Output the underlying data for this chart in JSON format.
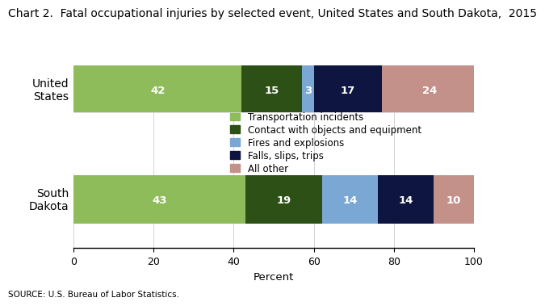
{
  "title": "Chart 2.  Fatal occupational injuries by selected event, United States and South Dakota,  2015",
  "categories": [
    "United\nStates",
    "South\nDakota"
  ],
  "segments": [
    {
      "label": "Transportation incidents",
      "color": "#8FBC5A",
      "values": [
        42,
        43
      ]
    },
    {
      "label": "Contact with objects and equipment",
      "color": "#2D5016",
      "values": [
        15,
        19
      ]
    },
    {
      "label": "Fires and explosions",
      "color": "#7BA7D4",
      "values": [
        3,
        14
      ]
    },
    {
      "label": "Falls, slips, trips",
      "color": "#0D1540",
      "values": [
        17,
        14
      ]
    },
    {
      "label": "All other",
      "color": "#C4908A",
      "values": [
        24,
        10
      ]
    }
  ],
  "xlabel": "Percent",
  "xlim": [
    0,
    100
  ],
  "xticks": [
    0,
    20,
    40,
    60,
    80,
    100
  ],
  "source": "SOURCE: U.S. Bureau of Labor Statistics.",
  "text_color_white": "#FFFFFF",
  "text_fontsize": 9.5,
  "title_fontsize": 10,
  "legend_fontsize": 8.5,
  "ytick_fontsize": 10
}
